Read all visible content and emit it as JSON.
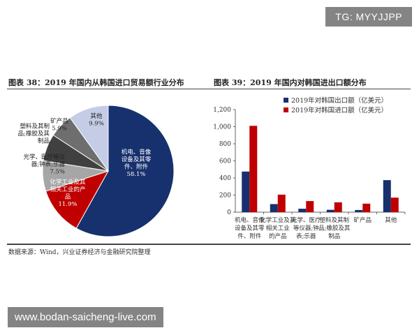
{
  "watermark": "TG: MYYJJPP",
  "site_banner": "www.bodan-saicheng-live.com",
  "source": "数据来源：Wind，兴业证券经济与金融研究院整理",
  "colors": {
    "navy": "#17306e",
    "red": "#c00000",
    "pie_chemical": "#c00000",
    "pie_optical": "#a6a6a6",
    "pie_plastic": "#404040",
    "pie_mineral": "#6e6e6e",
    "pie_other": "#c5cde6"
  },
  "chart_data": [
    {
      "type": "pie",
      "title": "图表 38：2019 年国内从韩国进口贸易额行业分布",
      "slices": [
        {
          "label": "机电、音像设备及其零件、附件",
          "lines": [
            "机电、音像",
            "设备及其零",
            "件、附件"
          ],
          "value": 58.1,
          "display": "58.1%"
        },
        {
          "label": "化学工业及其相关工业的产品",
          "lines": [
            "化学工业及其",
            "相关工业的产",
            "品"
          ],
          "value": 11.9,
          "display": "11.9%"
        },
        {
          "label": "光学、医疗等仪器;钟表;乐器",
          "lines": [
            "光学、医疗等仪",
            "器;钟表;乐器"
          ],
          "value": 7.5,
          "display": "7.5%"
        },
        {
          "label": "塑料及其制品;橡胶及其制品",
          "lines": [
            "塑料及其制",
            "品;橡胶及其",
            "制品"
          ],
          "value": 6.7,
          "display": ""
        },
        {
          "label": "矿产品",
          "lines": [
            "矿产品"
          ],
          "value": 5.9,
          "display": "5.9%"
        },
        {
          "label": "其他",
          "lines": [
            "其他"
          ],
          "value": 9.9,
          "display": "9.9%"
        }
      ]
    },
    {
      "type": "bar",
      "title": "图表 39：2019 年国内对韩国进出口额分布",
      "categories": [
        [
          "机电、音像",
          "设备及其零",
          "件、附件"
        ],
        [
          "化学工业及其",
          "相关工业",
          "的产品"
        ],
        [
          "光学、医疗",
          "等仪器;钟",
          "表;乐器"
        ],
        [
          "塑料及其制",
          "品;橡胶及其",
          "制品"
        ],
        [
          "矿产品"
        ],
        [
          "其他"
        ]
      ],
      "series": [
        {
          "name": "2019年对韩国出口额（亿美元）",
          "values": [
            475,
            95,
            40,
            28,
            25,
            375
          ]
        },
        {
          "name": "2019年对韩国进口额（亿美元）",
          "values": [
            1010,
            205,
            130,
            115,
            100,
            170
          ]
        }
      ],
      "yticks": [
        "0",
        "200",
        "400",
        "600",
        "800",
        "1,000",
        "1,200"
      ],
      "ylim": [
        0,
        1200
      ]
    }
  ]
}
